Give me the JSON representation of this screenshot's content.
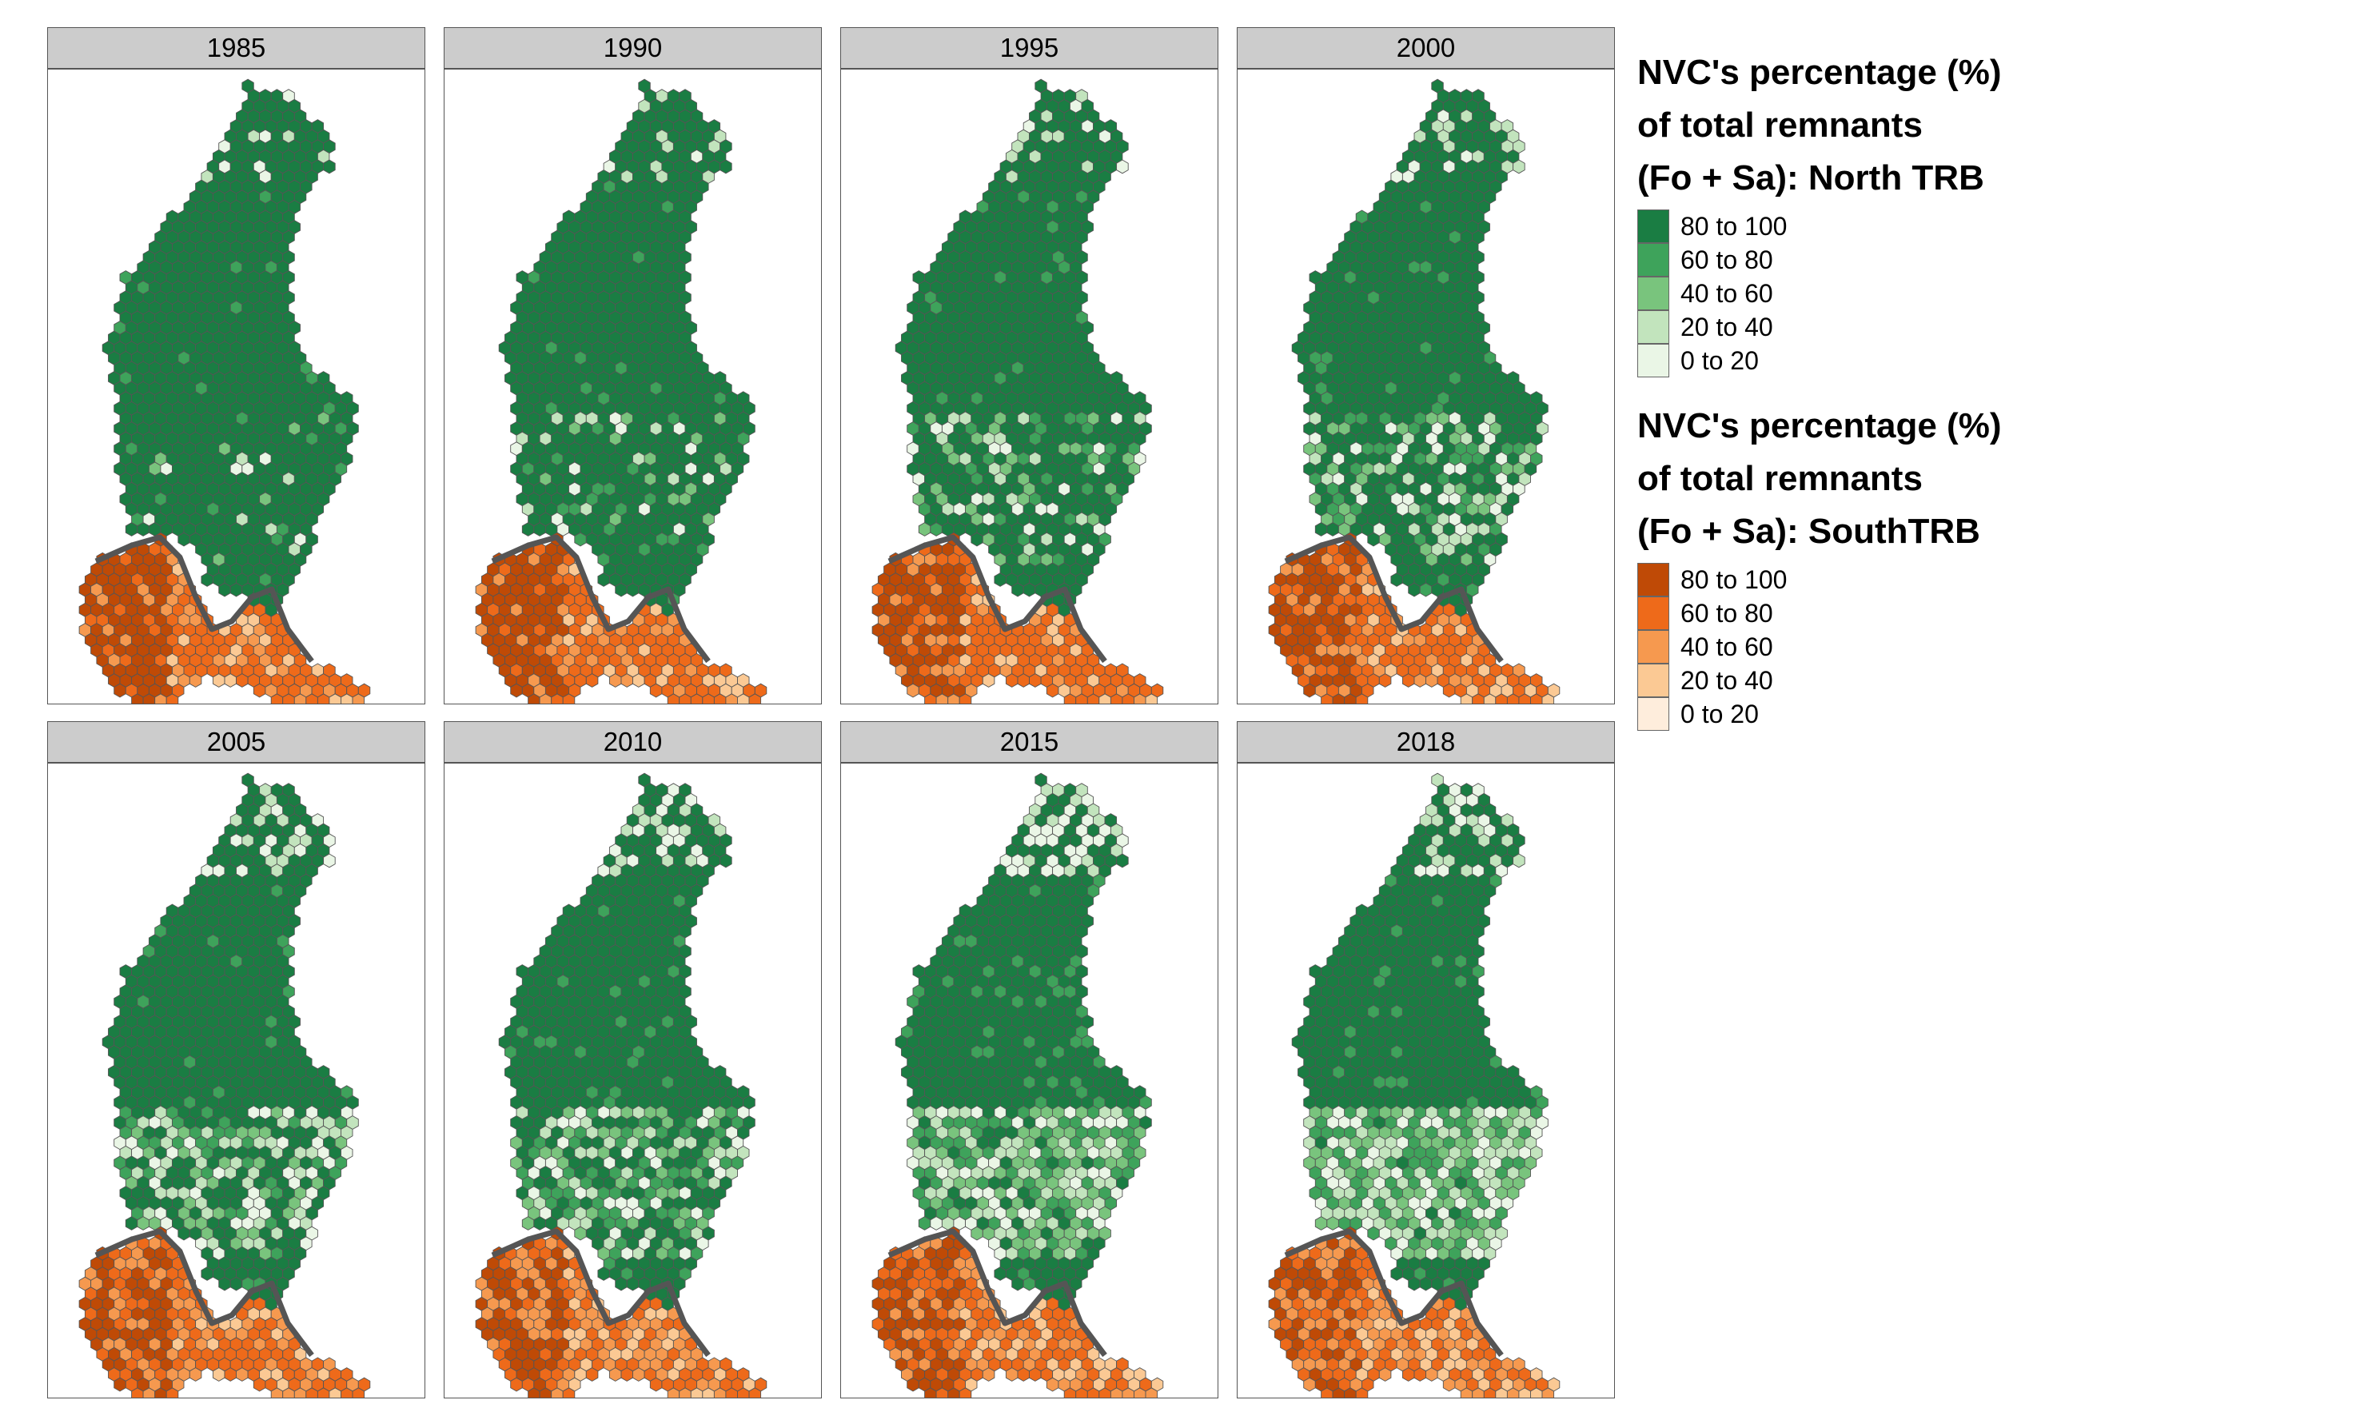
{
  "panels": [
    "1985",
    "1990",
    "1995",
    "2000",
    "2005",
    "2010",
    "2015",
    "2018"
  ],
  "legend": {
    "north": {
      "title_lines": [
        "NVC's percentage (%)",
        "of total remnants",
        "(Fo + Sa): North TRB"
      ],
      "classes": [
        {
          "label": "80 to 100",
          "color": "#1a7d43"
        },
        {
          "label": "60 to 80",
          "color": "#3ea35b"
        },
        {
          "label": "40 to 60",
          "color": "#79c47d"
        },
        {
          "label": "20 to 40",
          "color": "#c2e4bd"
        },
        {
          "label": "0 to 20",
          "color": "#eaf6e6"
        }
      ]
    },
    "south": {
      "title_lines": [
        "NVC's percentage (%)",
        "of total remnants",
        "(Fo + Sa): SouthTRB"
      ],
      "classes": [
        {
          "label": "80 to 100",
          "color": "#bf4a06"
        },
        {
          "label": "60 to 80",
          "color": "#ee6a1a"
        },
        {
          "label": "40 to 60",
          "color": "#f6994f"
        },
        {
          "label": "20 to 40",
          "color": "#fbc994"
        },
        {
          "label": "0 to 20",
          "color": "#feeddc"
        }
      ]
    }
  },
  "boundary_color": "#555555"
}
